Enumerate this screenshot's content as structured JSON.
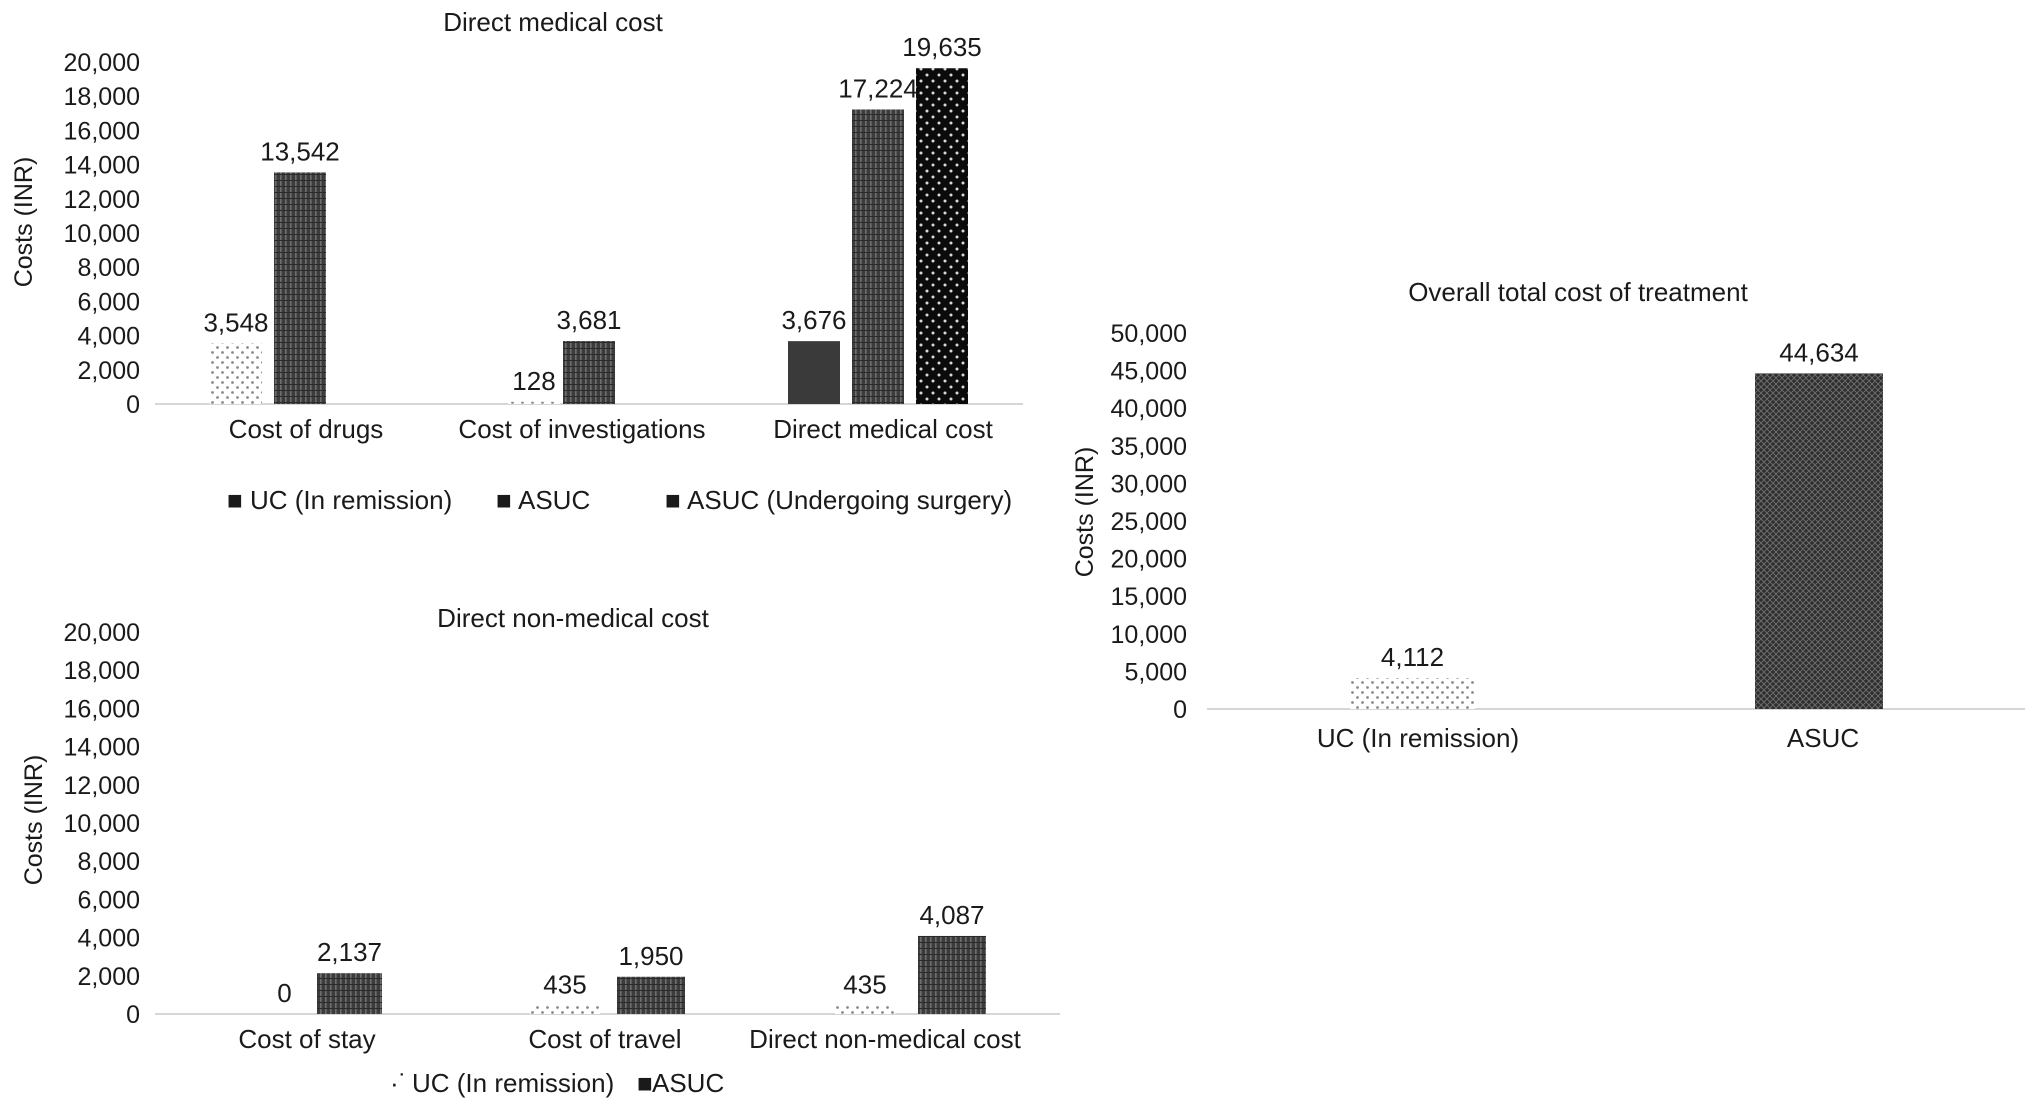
{
  "chart_data": [
    {
      "type": "bar",
      "title": "Direct medical cost",
      "ylabel": "Costs (INR)",
      "ylim": [
        0,
        20000
      ],
      "yticks": [
        "0",
        "2,000",
        "4,000",
        "6,000",
        "8,000",
        "10,000",
        "12,000",
        "14,000",
        "16,000",
        "18,000",
        "20,000"
      ],
      "categories": [
        "Cost of drugs",
        "Cost of investigations",
        "Direct medical cost"
      ],
      "series": [
        {
          "name": "UC (In remission)",
          "pattern": "dots-light",
          "values": [
            3548,
            128,
            3676
          ],
          "labels": [
            "3,548",
            "128",
            "3,676"
          ]
        },
        {
          "name": "ASUC",
          "pattern": "vlines",
          "values": [
            13542,
            3681,
            17224
          ],
          "labels": [
            "13,542",
            "3,681",
            "17,224"
          ]
        },
        {
          "name": "ASUC (Undergoing surgery)",
          "pattern": "dots-dark",
          "values": [
            null,
            null,
            19635
          ],
          "labels": [
            "",
            "",
            "19,635"
          ]
        }
      ],
      "legend_position": "bottom",
      "legend_markers": [
        "■",
        "■",
        "■"
      ],
      "grid": false
    },
    {
      "type": "bar",
      "title": "Direct non-medical cost",
      "ylabel": "Costs (INR)",
      "ylim": [
        0,
        20000
      ],
      "yticks": [
        "0",
        "2,000",
        "4,000",
        "6,000",
        "8,000",
        "10,000",
        "12,000",
        "14,000",
        "16,000",
        "18,000",
        "20,000"
      ],
      "categories": [
        "Cost of stay",
        "Cost of travel",
        "Direct non-medical cost"
      ],
      "series": [
        {
          "name": "UC (In remission)",
          "pattern": "dots-light",
          "values": [
            0,
            435,
            435
          ],
          "labels": [
            "0",
            "435",
            "435"
          ]
        },
        {
          "name": "ASUC",
          "pattern": "vlines",
          "values": [
            2137,
            1950,
            4087
          ],
          "labels": [
            "2,137",
            "1,950",
            "4,087"
          ]
        }
      ],
      "legend_position": "bottom",
      "legend_markers": [
        "·˙",
        "■"
      ],
      "grid": false
    },
    {
      "type": "bar",
      "title": "Overall total cost of treatment",
      "ylabel": "Costs (INR)",
      "ylim": [
        0,
        50000
      ],
      "yticks": [
        "0",
        "5,000",
        "10,000",
        "15,000",
        "20,000",
        "25,000",
        "30,000",
        "35,000",
        "40,000",
        "45,000",
        "50,000"
      ],
      "categories": [
        "UC (In remission)",
        "ASUC"
      ],
      "series": [
        {
          "name": "",
          "pattern": "dots-light",
          "values": [
            4112,
            44634
          ],
          "labels": [
            "4,112",
            "44,634"
          ]
        }
      ],
      "legend_position": "none",
      "grid": false
    }
  ]
}
